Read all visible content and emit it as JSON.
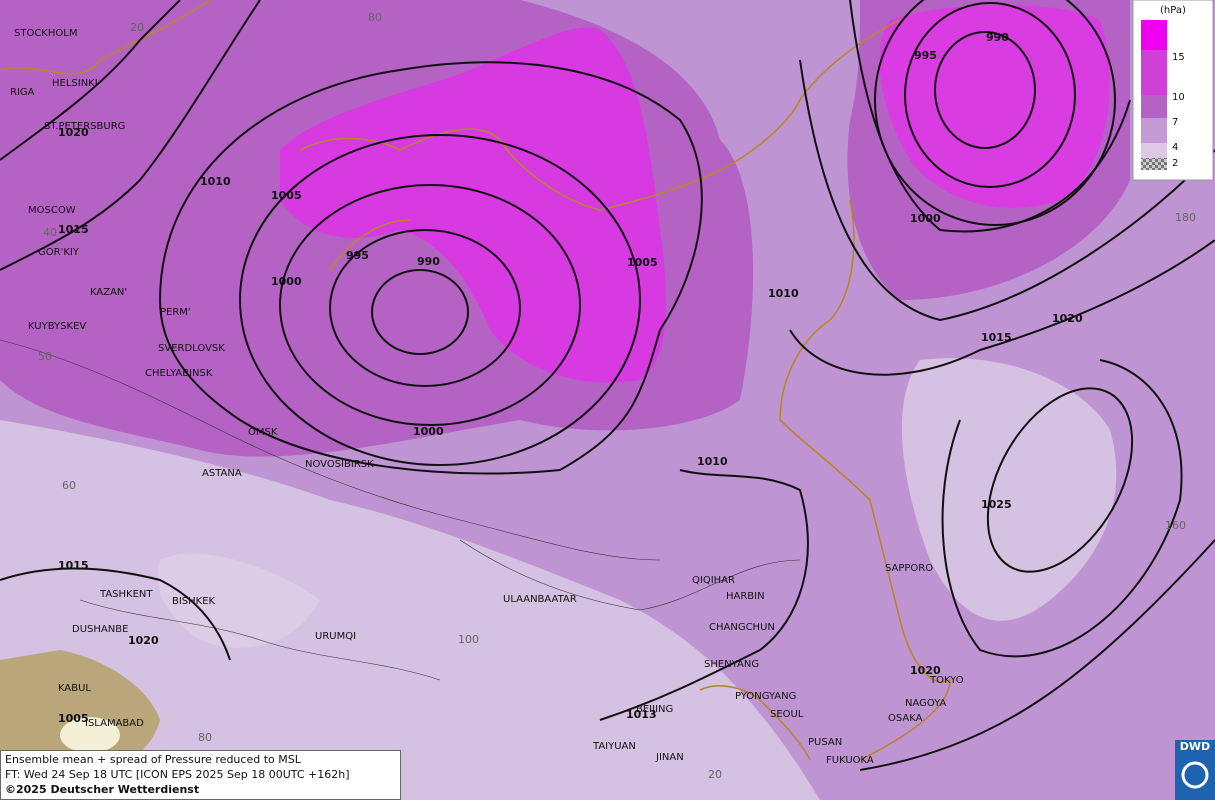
{
  "map": {
    "cities": [
      "STOCKHOLM",
      "HELSINKI",
      "RIGA",
      "ST.PETERSBURG",
      "MOSCOW",
      "GOR'KIY",
      "KAZAN'",
      "PERM'",
      "KUYBYSKEV",
      "SVERDLOVSK",
      "CHELYABINSK",
      "OMSK",
      "ASTANA",
      "NOVOSIBIRSK",
      "TASHKENT",
      "BISHKEK",
      "DUSHANBE",
      "URUMQI",
      "KABUL",
      "ISLAMABAD",
      "ULAANBAATAR",
      "QIQIHAR",
      "HARBIN",
      "CHANGCHUN",
      "SHENYANG",
      "PYONGYANG",
      "SEOUL",
      "BEIJING",
      "TAIYUAN",
      "JINAN",
      "PUSAN",
      "FUKUOKA",
      "SAPPORO",
      "TOKYO",
      "NAGOYA",
      "OSAKA"
    ],
    "isobar_labels": [
      "1020",
      "1010",
      "1015",
      "1005",
      "995",
      "990",
      "1000",
      "1005",
      "1010",
      "1000",
      "1010",
      "995",
      "990",
      "1000",
      "1015",
      "1020",
      "1025",
      "1015",
      "1020",
      "1020",
      "1013",
      "1005"
    ],
    "graticule_labels": [
      "20",
      "80",
      "40",
      "50",
      "60",
      "100",
      "80",
      "20",
      "180",
      "160"
    ]
  },
  "legend": {
    "unit": "(hPa)",
    "levels": [
      15,
      10,
      7,
      4,
      2
    ]
  },
  "footer": {
    "line1": "Ensemble mean + spread of Pressure reduced to MSL",
    "line2": "FT: Wed 24 Sep 18 UTC [ICON EPS 2025 Sep 18 00UTC +162h]",
    "line3": "©2025 Deutscher Wetterdienst"
  },
  "logo": "DWD"
}
